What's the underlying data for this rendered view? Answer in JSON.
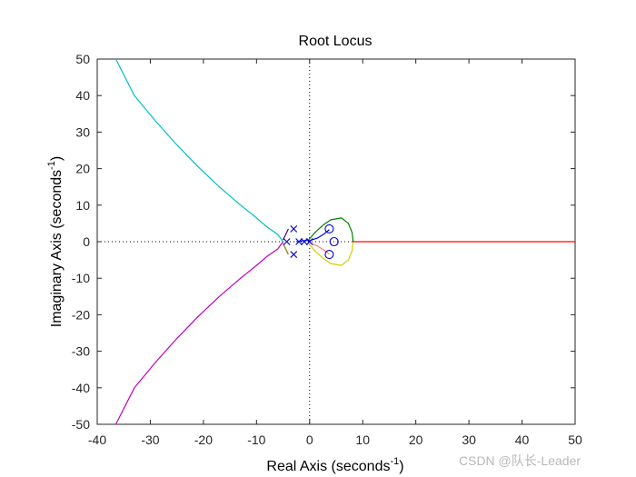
{
  "chart_data": {
    "type": "line",
    "title": "Root Locus",
    "xlabel": "Real Axis (seconds",
    "ylabel": "Imaginary Axis (seconds",
    "unit_exponent": "-1",
    "label_close": ")",
    "xlim": [
      -40,
      50
    ],
    "ylim": [
      -50,
      50
    ],
    "xticks": [
      "-40",
      "-30",
      "-20",
      "-10",
      "0",
      "10",
      "20",
      "30",
      "40",
      "50"
    ],
    "yticks": [
      "-50",
      "-40",
      "-30",
      "-20",
      "-10",
      "0",
      "10",
      "20",
      "30",
      "40",
      "50"
    ],
    "xtick_values": [
      -40,
      -30,
      -20,
      -10,
      0,
      10,
      20,
      30,
      40,
      50
    ],
    "ytick_values": [
      -50,
      -40,
      -30,
      -20,
      -10,
      0,
      10,
      20,
      30,
      40,
      50
    ],
    "grid": false,
    "series": [
      {
        "color": "#00bfbf",
        "points": [
          [
            -5.0,
            0.0
          ],
          [
            -6.0,
            2.0
          ],
          [
            -8.0,
            4.0
          ],
          [
            -10.0,
            6.5
          ],
          [
            -13.0,
            10.0
          ],
          [
            -17.0,
            15.0
          ],
          [
            -21.0,
            20.5
          ],
          [
            -25.0,
            26.5
          ],
          [
            -29.0,
            33.0
          ],
          [
            -33.0,
            40.0
          ],
          [
            -36.5,
            50.0
          ]
        ]
      },
      {
        "color": "#bf00bf",
        "points": [
          [
            -5.0,
            0.0
          ],
          [
            -6.0,
            -2.0
          ],
          [
            -8.0,
            -4.0
          ],
          [
            -10.0,
            -6.5
          ],
          [
            -13.0,
            -10.0
          ],
          [
            -17.0,
            -15.0
          ],
          [
            -21.0,
            -20.5
          ],
          [
            -25.0,
            -26.5
          ],
          [
            -29.0,
            -33.0
          ],
          [
            -33.0,
            -40.0
          ],
          [
            -36.5,
            -50.0
          ]
        ]
      },
      {
        "color": "#008000",
        "points": [
          [
            -0.3,
            0.3
          ],
          [
            1.0,
            2.5
          ],
          [
            2.5,
            4.5
          ],
          [
            4.0,
            6.0
          ],
          [
            6.0,
            6.5
          ],
          [
            7.3,
            5.0
          ],
          [
            8.0,
            2.5
          ],
          [
            8.2,
            0.0
          ]
        ]
      },
      {
        "color": "#d0d000",
        "points": [
          [
            -0.3,
            -0.3
          ],
          [
            1.0,
            -2.5
          ],
          [
            2.5,
            -4.5
          ],
          [
            4.0,
            -6.0
          ],
          [
            6.0,
            -6.5
          ],
          [
            7.3,
            -5.0
          ],
          [
            8.0,
            -2.5
          ],
          [
            8.2,
            0.0
          ]
        ]
      },
      {
        "color": "#ff0000",
        "points": [
          [
            8.2,
            0.0
          ],
          [
            20.0,
            0.0
          ],
          [
            35.0,
            0.0
          ],
          [
            50.0,
            0.0
          ]
        ]
      },
      {
        "color": "#0000ff",
        "points": [
          [
            -2.5,
            0.0
          ],
          [
            -1.0,
            0.3
          ],
          [
            0.0,
            0.3
          ],
          [
            1.5,
            1.0
          ],
          [
            2.8,
            2.2
          ],
          [
            3.7,
            3.3
          ]
        ]
      },
      {
        "color": "#ff8080",
        "points": [
          [
            0.0,
            -0.3
          ],
          [
            1.5,
            -1.2
          ],
          [
            2.8,
            -2.4
          ],
          [
            3.7,
            -3.4
          ]
        ]
      },
      {
        "color": "#4b0082",
        "points": [
          [
            -4.0,
            3.5
          ],
          [
            -4.5,
            2.0
          ],
          [
            -5.0,
            0.5
          ]
        ]
      },
      {
        "color": "#808000",
        "points": [
          [
            -4.0,
            -3.5
          ],
          [
            -4.5,
            -2.0
          ],
          [
            -5.0,
            -0.5
          ]
        ]
      }
    ],
    "poles": [
      [
        -4.3,
        0.0
      ],
      [
        -3.0,
        3.5
      ],
      [
        -3.0,
        -3.5
      ],
      [
        -2.0,
        0.0
      ],
      [
        -1.0,
        0.0
      ],
      [
        0.0,
        0.0
      ]
    ],
    "zeros": [
      [
        3.7,
        3.5
      ],
      [
        3.7,
        -3.5
      ],
      [
        4.6,
        0.0
      ]
    ],
    "pole_color": "#0000cc",
    "zero_color": "#0000cc"
  },
  "watermark": "CSDN @队长-Leader"
}
